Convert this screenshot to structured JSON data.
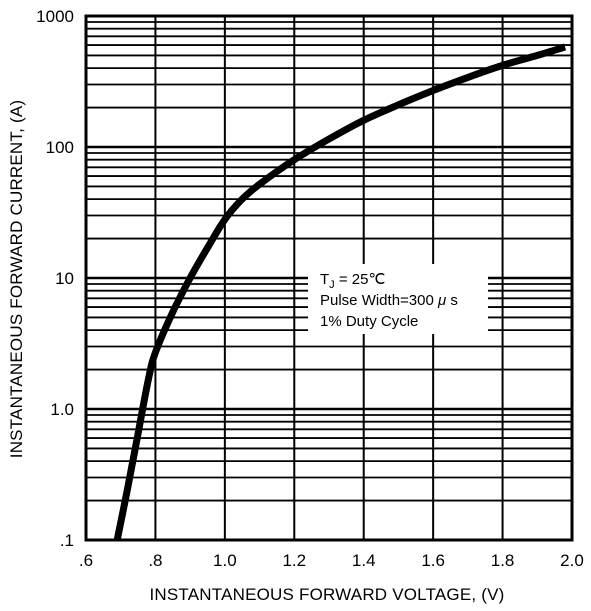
{
  "chart_data": {
    "type": "line",
    "title": "",
    "xlabel": "INSTANTANEOUS FORWARD VOLTAGE, (V)",
    "ylabel": "INSTANTANEOUS FORWARD CURRENT, (A)",
    "xlim": [
      0.6,
      2.0
    ],
    "ylim": [
      0.1,
      1000
    ],
    "yscale": "log",
    "grid": true,
    "x_tick_labels": [
      ".6",
      ".8",
      "1.0",
      "1.2",
      "1.4",
      "1.6",
      "1.8",
      "2.0"
    ],
    "x_tick_values": [
      0.6,
      0.8,
      1.0,
      1.2,
      1.4,
      1.6,
      1.8,
      2.0
    ],
    "y_tick_labels": [
      ".1",
      "1.0",
      "10",
      "100",
      "1000"
    ],
    "y_tick_values": [
      0.1,
      1,
      10,
      100,
      1000
    ],
    "series": [
      {
        "x": [
          0.69,
          0.72,
          0.75,
          0.78,
          0.8,
          0.85,
          0.9,
          0.95,
          1.0,
          1.05,
          1.1,
          1.2,
          1.3,
          1.4,
          1.5,
          1.6,
          1.7,
          1.8,
          1.9,
          1.98
        ],
        "y": [
          0.1,
          0.25,
          0.65,
          1.7,
          2.7,
          5.5,
          10,
          17,
          28,
          40,
          52,
          80,
          115,
          160,
          210,
          270,
          340,
          420,
          500,
          580
        ]
      }
    ],
    "annotations": [
      {
        "prefix": "T",
        "sub": "J",
        "suffix": " = 25℃"
      },
      {
        "text": "Pulse Width=300 ",
        "mu": "μ",
        "tail": " s"
      },
      {
        "text": "1% Duty Cycle"
      }
    ]
  }
}
